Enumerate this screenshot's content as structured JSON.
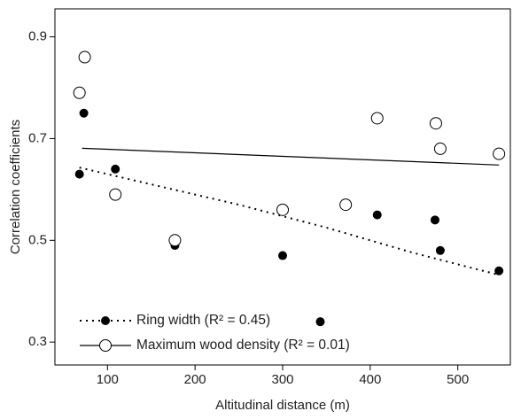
{
  "chart_data": {
    "type": "scatter",
    "x_label": "Altitudinal distance (m)",
    "y_label": "Correlation coefficients",
    "xlim": [
      40,
      560
    ],
    "ylim": [
      0.255,
      0.955
    ],
    "xticks": [
      100,
      200,
      300,
      400,
      500
    ],
    "yticks": [
      0.3,
      0.5,
      0.7,
      0.9
    ],
    "legend": "lower left",
    "series": [
      {
        "name": "Ring width (R² = 0.45)",
        "color": "#000000",
        "marker": "filled",
        "x": [
          68,
          73,
          109,
          177,
          300,
          343,
          408,
          474,
          480,
          547
        ],
        "values": [
          0.63,
          0.75,
          0.64,
          0.49,
          0.47,
          0.34,
          0.55,
          0.54,
          0.48,
          0.44
        ],
        "trend": {
          "style": "dotted",
          "x": [
            68,
            150,
            250,
            350,
            450,
            547
          ],
          "values": [
            0.643,
            0.61,
            0.57,
            0.525,
            0.475,
            0.432
          ]
        }
      },
      {
        "name": "Maximum wood density (R² = 0.01)",
        "color": "#000000",
        "marker": "open",
        "x": [
          68,
          74,
          109,
          177,
          300,
          372,
          408,
          475,
          480,
          547
        ],
        "values": [
          0.79,
          0.86,
          0.59,
          0.5,
          0.56,
          0.57,
          0.74,
          0.73,
          0.68,
          0.67
        ],
        "trend": {
          "style": "solid",
          "x": [
            71,
            547
          ],
          "values": [
            0.681,
            0.648
          ]
        }
      }
    ]
  }
}
